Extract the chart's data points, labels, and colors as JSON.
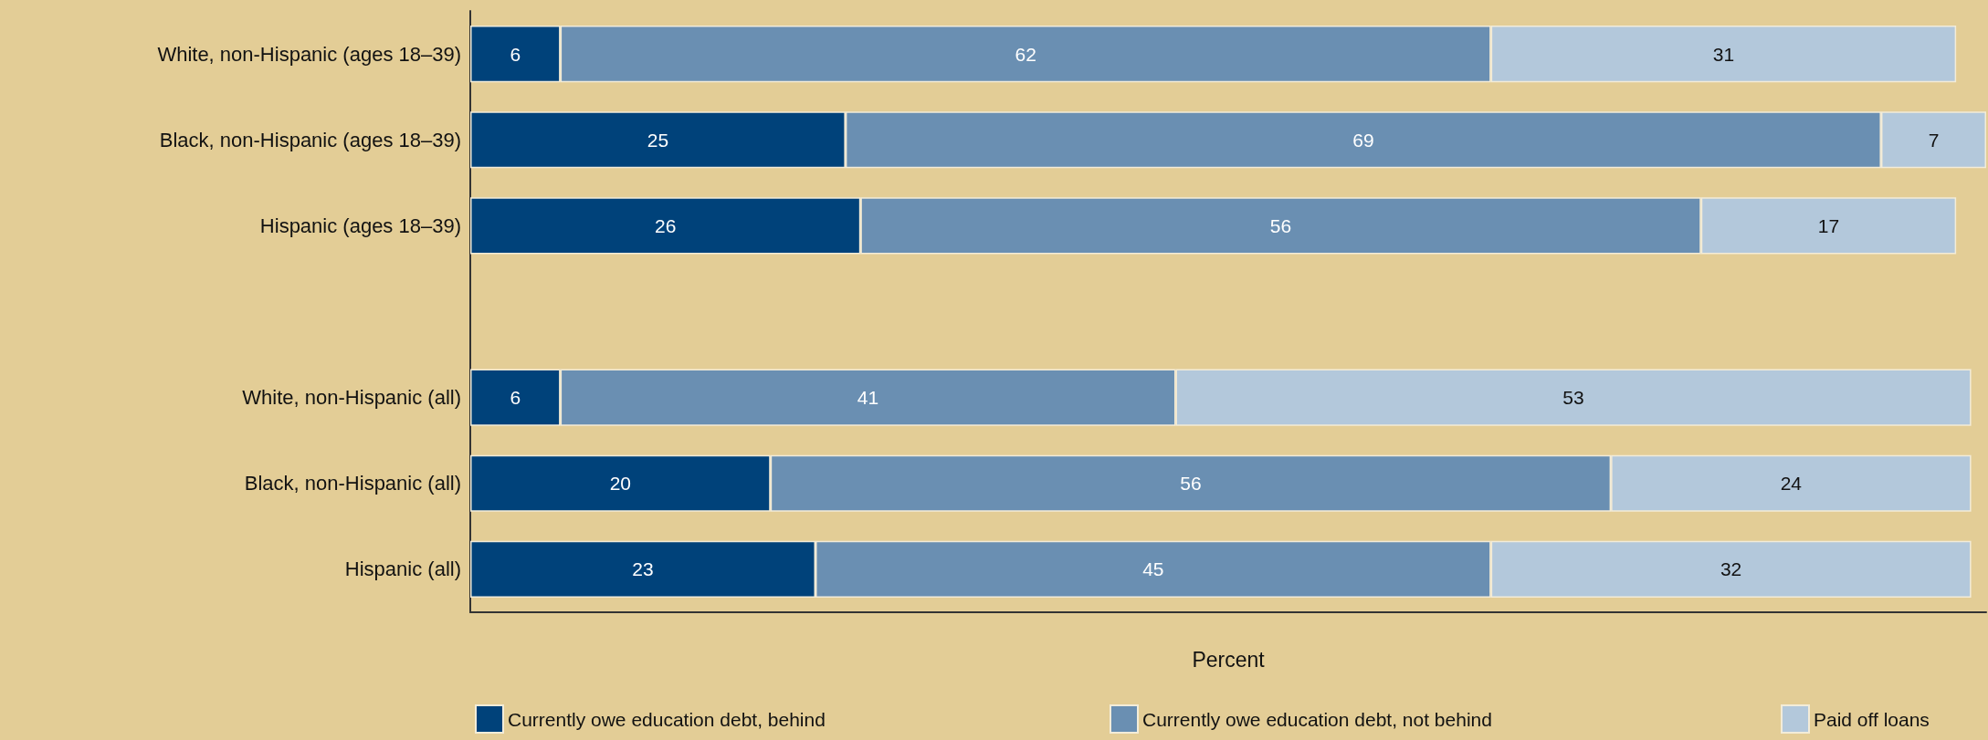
{
  "chart_data": {
    "type": "bar",
    "orientation": "horizontal",
    "stacked": true,
    "categories": [
      "White, non-Hispanic (ages 18–39)",
      "Black, non-Hispanic (ages 18–39)",
      "Hispanic (ages 18–39)",
      null,
      "White, non-Hispanic (all)",
      "Black, non-Hispanic (all)",
      "Hispanic (all)"
    ],
    "series": [
      {
        "name": "Currently owe education debt, behind",
        "color": "#00427a",
        "values": [
          6,
          25,
          26,
          null,
          6,
          20,
          23
        ]
      },
      {
        "name": "Currently owe education debt, not behind",
        "color": "#6a8fb2",
        "values": [
          62,
          69,
          56,
          null,
          41,
          56,
          45
        ]
      },
      {
        "name": "Paid off loans",
        "color": "#b3c8db",
        "values": [
          31,
          7,
          17,
          null,
          53,
          24,
          32
        ]
      }
    ],
    "xlim": [
      0,
      101
    ],
    "xlabel": "Percent",
    "tick_labels": "y",
    "data_labels": true,
    "legend": "bottom"
  }
}
